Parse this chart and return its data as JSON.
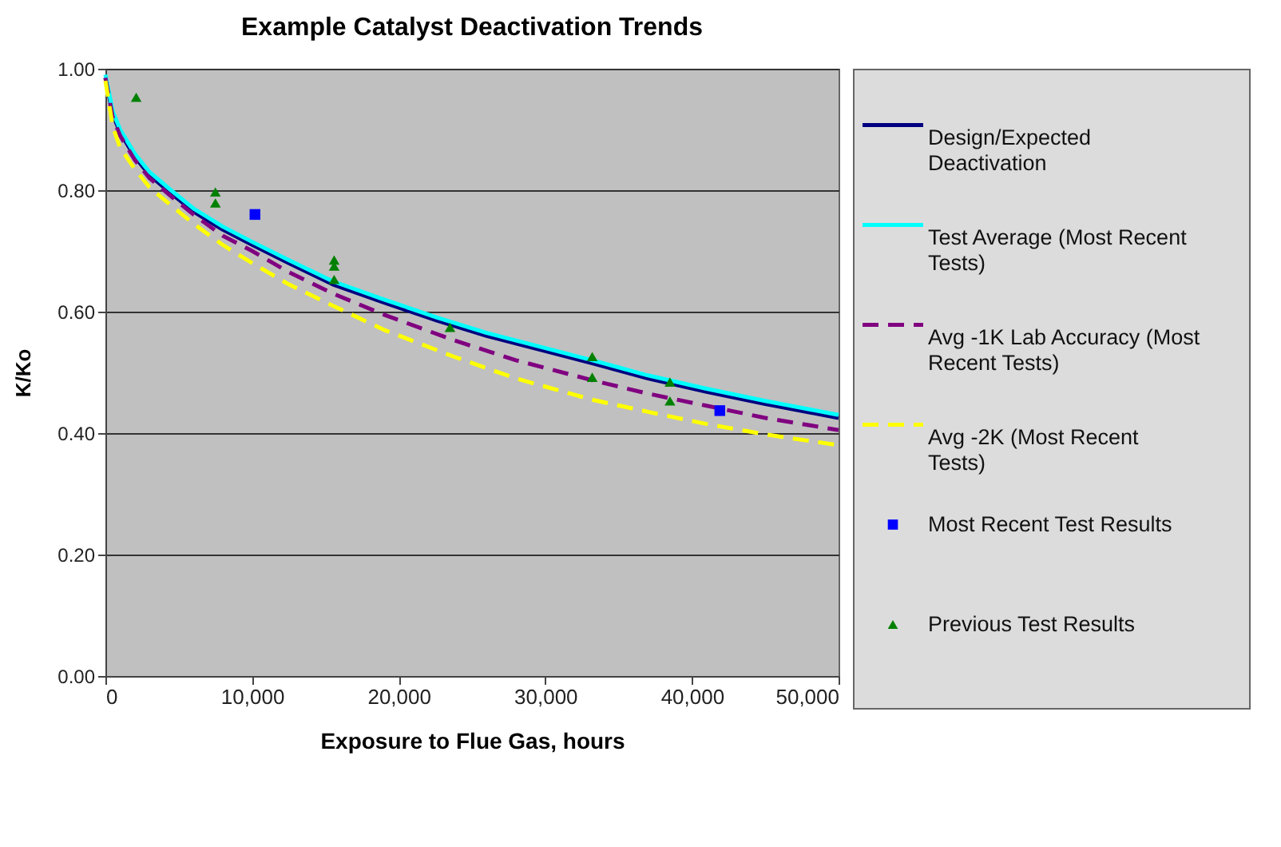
{
  "chart_data": {
    "type": "line",
    "title": "Example Catalyst Deactivation Trends",
    "xlabel": "Exposure to Flue Gas, hours",
    "ylabel": "K/Ko",
    "xlim": [
      0,
      50000
    ],
    "ylim": [
      0,
      1
    ],
    "xticks": [
      0,
      {
        "value": 10000,
        "label": "10,000"
      },
      {
        "value": 20000,
        "label": "20,000"
      },
      {
        "value": 30000,
        "label": "30,000"
      },
      {
        "value": 40000,
        "label": "40,000"
      },
      {
        "value": 50000,
        "label": "50,000"
      }
    ],
    "yticks": [
      {
        "value": 0,
        "label": "0.00"
      },
      {
        "value": 0.2,
        "label": "0.20"
      },
      {
        "value": 0.4,
        "label": "0.40"
      },
      {
        "value": 0.6,
        "label": "0.60"
      },
      {
        "value": 0.8,
        "label": "0.80"
      },
      {
        "value": 1,
        "label": "1.00"
      }
    ],
    "grid": "y",
    "legend": "right",
    "series": [
      {
        "name": "Design/Expected Deactivation",
        "type": "line",
        "color": "#000080",
        "line_style": "solid",
        "x": [
          0,
          500,
          1000,
          2000,
          3000,
          4470,
          6000,
          8000,
          10000,
          12500,
          15500,
          19000,
          22650,
          26000,
          30000,
          33200,
          37000,
          41000,
          45000,
          50000
        ],
        "values": [
          0.985,
          0.925,
          0.895,
          0.855,
          0.825,
          0.795,
          0.765,
          0.735,
          0.71,
          0.68,
          0.645,
          0.615,
          0.585,
          0.56,
          0.535,
          0.515,
          0.49,
          0.468,
          0.448,
          0.425
        ]
      },
      {
        "name": "Test Average (Most Recent Tests)",
        "type": "line",
        "color": "#00ffff",
        "line_style": "solid",
        "x": [
          0,
          500,
          1000,
          2000,
          3000,
          4470,
          6000,
          8000,
          10000,
          12500,
          15500,
          19000,
          22650,
          26000,
          30000,
          33200,
          37000,
          41000,
          45000,
          50000
        ],
        "values": [
          0.99,
          0.93,
          0.9,
          0.86,
          0.83,
          0.8,
          0.77,
          0.74,
          0.715,
          0.685,
          0.65,
          0.62,
          0.59,
          0.565,
          0.54,
          0.52,
          0.495,
          0.473,
          0.453,
          0.43
        ]
      },
      {
        "name": "Avg -1K Lab Accuracy (Most Recent Tests)",
        "type": "line",
        "color": "#800080",
        "line_style": "dashed",
        "x": [
          0,
          500,
          1000,
          2000,
          3000,
          4470,
          6000,
          8000,
          10000,
          12500,
          15500,
          19000,
          23750,
          28000,
          33200,
          37000,
          41000,
          45000,
          50000
        ],
        "values": [
          0.985,
          0.92,
          0.89,
          0.85,
          0.82,
          0.79,
          0.76,
          0.725,
          0.7,
          0.665,
          0.63,
          0.595,
          0.553,
          0.52,
          0.487,
          0.465,
          0.445,
          0.425,
          0.405
        ]
      },
      {
        "name": "Avg -2K (Most Recent Tests)",
        "type": "line",
        "color": "#ffff00",
        "line_style": "dashed",
        "x": [
          0,
          500,
          1000,
          2000,
          3000,
          4470,
          6000,
          8000,
          10000,
          12500,
          15500,
          19000,
          23750,
          28000,
          33200,
          37000,
          41000,
          45000,
          50000
        ],
        "values": [
          0.98,
          0.905,
          0.87,
          0.835,
          0.805,
          0.775,
          0.745,
          0.71,
          0.68,
          0.645,
          0.61,
          0.57,
          0.526,
          0.49,
          0.455,
          0.435,
          0.415,
          0.398,
          0.38
        ]
      },
      {
        "name": "Most Recent Test Results",
        "type": "scatter",
        "color": "#0000ff",
        "marker": "square",
        "x": [
          10200,
          41900
        ],
        "values": [
          0.76,
          0.437
        ]
      },
      {
        "name": "Previous Test Results",
        "type": "scatter",
        "color": "#008000",
        "marker": "triangle",
        "x": [
          2100,
          7500,
          7500,
          15600,
          15600,
          15600,
          23500,
          33200,
          33200,
          38500,
          38500
        ],
        "values": [
          0.953,
          0.797,
          0.779,
          0.685,
          0.675,
          0.653,
          0.574,
          0.526,
          0.492,
          0.484,
          0.453
        ]
      }
    ]
  }
}
